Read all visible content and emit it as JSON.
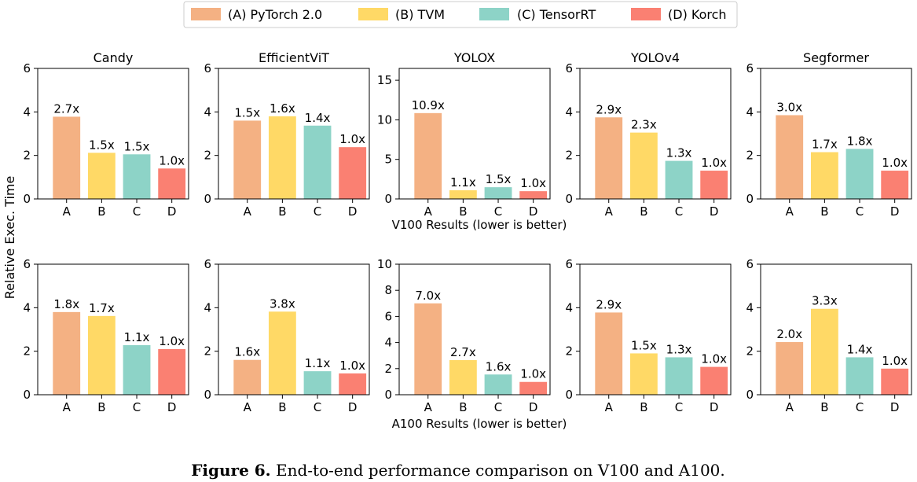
{
  "legend": {
    "items": [
      {
        "label": "(A) PyTorch 2.0",
        "color": "#F4B183"
      },
      {
        "label": "(B) TVM",
        "color": "#FFD966"
      },
      {
        "label": "(C) TensorRT",
        "color": "#8DD3C7"
      },
      {
        "label": "(D) Korch",
        "color": "#FA8072"
      }
    ]
  },
  "ylabel": "Relative Exec. Time",
  "row_labels": [
    "V100 Results (lower is better)",
    "A100 Results (lower is better)"
  ],
  "caption": {
    "bold": "Figure 6.",
    "text": " End-to-end performance comparison on V100 and A100."
  },
  "chart_data": [
    {
      "type": "bar",
      "title": "Candy",
      "gpu": "V100",
      "categories": [
        "A",
        "B",
        "C",
        "D"
      ],
      "values": [
        3.78,
        2.12,
        2.05,
        1.4
      ],
      "labels": [
        "2.7x",
        "1.5x",
        "1.5x",
        "1.0x"
      ],
      "ylim": [
        0,
        6
      ],
      "yticks": [
        0,
        2,
        4,
        6
      ]
    },
    {
      "type": "bar",
      "title": "EfficientViT",
      "gpu": "V100",
      "categories": [
        "A",
        "B",
        "C",
        "D"
      ],
      "values": [
        3.6,
        3.8,
        3.37,
        2.38
      ],
      "labels": [
        "1.5x",
        "1.6x",
        "1.4x",
        "1.0x"
      ],
      "ylim": [
        0,
        6
      ],
      "yticks": [
        0,
        2,
        4,
        6
      ]
    },
    {
      "type": "bar",
      "title": "YOLOX",
      "gpu": "V100",
      "categories": [
        "A",
        "B",
        "C",
        "D"
      ],
      "values": [
        10.85,
        1.1,
        1.48,
        0.98
      ],
      "labels": [
        "10.9x",
        "1.1x",
        "1.5x",
        "1.0x"
      ],
      "ylim": [
        0,
        16.5
      ],
      "yticks": [
        0,
        5,
        10,
        15
      ]
    },
    {
      "type": "bar",
      "title": "YOLOv4",
      "gpu": "V100",
      "categories": [
        "A",
        "B",
        "C",
        "D"
      ],
      "values": [
        3.75,
        3.05,
        1.75,
        1.3
      ],
      "labels": [
        "2.9x",
        "2.3x",
        "1.3x",
        "1.0x"
      ],
      "ylim": [
        0,
        6
      ],
      "yticks": [
        0,
        2,
        4,
        6
      ]
    },
    {
      "type": "bar",
      "title": "Segformer",
      "gpu": "V100",
      "categories": [
        "A",
        "B",
        "C",
        "D"
      ],
      "values": [
        3.85,
        2.15,
        2.3,
        1.3
      ],
      "labels": [
        "3.0x",
        "1.7x",
        "1.8x",
        "1.0x"
      ],
      "ylim": [
        0,
        6
      ],
      "yticks": [
        0,
        2,
        4,
        6
      ]
    },
    {
      "type": "bar",
      "title": "",
      "gpu": "A100",
      "categories": [
        "A",
        "B",
        "C",
        "D"
      ],
      "values": [
        3.8,
        3.62,
        2.28,
        2.1
      ],
      "labels": [
        "1.8x",
        "1.7x",
        "1.1x",
        "1.0x"
      ],
      "ylim": [
        0,
        6
      ],
      "yticks": [
        0,
        2,
        4,
        6
      ]
    },
    {
      "type": "bar",
      "title": "",
      "gpu": "A100",
      "categories": [
        "A",
        "B",
        "C",
        "D"
      ],
      "values": [
        1.6,
        3.82,
        1.08,
        0.98
      ],
      "labels": [
        "1.6x",
        "3.8x",
        "1.1x",
        "1.0x"
      ],
      "ylim": [
        0,
        6
      ],
      "yticks": [
        0,
        2,
        4,
        6
      ]
    },
    {
      "type": "bar",
      "title": "",
      "gpu": "A100",
      "categories": [
        "A",
        "B",
        "C",
        "D"
      ],
      "values": [
        7.0,
        2.65,
        1.55,
        0.98
      ],
      "labels": [
        "7.0x",
        "2.7x",
        "1.6x",
        "1.0x"
      ],
      "ylim": [
        0,
        10
      ],
      "yticks": [
        0,
        2,
        4,
        6,
        8,
        10
      ]
    },
    {
      "type": "bar",
      "title": "",
      "gpu": "A100",
      "categories": [
        "A",
        "B",
        "C",
        "D"
      ],
      "values": [
        3.78,
        1.9,
        1.72,
        1.28
      ],
      "labels": [
        "2.9x",
        "1.5x",
        "1.3x",
        "1.0x"
      ],
      "ylim": [
        0,
        6
      ],
      "yticks": [
        0,
        2,
        4,
        6
      ]
    },
    {
      "type": "bar",
      "title": "",
      "gpu": "A100",
      "categories": [
        "A",
        "B",
        "C",
        "D"
      ],
      "values": [
        2.42,
        3.95,
        1.72,
        1.2
      ],
      "labels": [
        "2.0x",
        "3.3x",
        "1.4x",
        "1.0x"
      ],
      "ylim": [
        0,
        6
      ],
      "yticks": [
        0,
        2,
        4,
        6
      ]
    }
  ]
}
